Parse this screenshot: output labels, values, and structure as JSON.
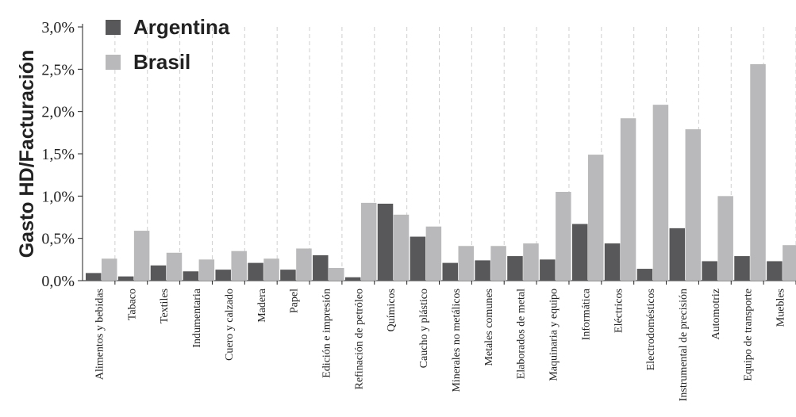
{
  "chart_data": {
    "type": "bar",
    "ylabel": "Gasto HD/Facturación",
    "xlabel": "",
    "ylim": [
      0,
      3.0
    ],
    "yticks": [
      "0,0%",
      "0,5%",
      "1,0%",
      "1,5%",
      "2,0%",
      "2,5%",
      "3,0%"
    ],
    "grid": "vertical-dashed",
    "legend_position": "top-left",
    "categories": [
      "Alimentos y bebidas",
      "Tabaco",
      "Textiles",
      "Indumentaria",
      "Cuero y calzado",
      "Madera",
      "Papel",
      "Edición e impresión",
      "Refinación de petróleo",
      "Químicos",
      "Caucho y plástico",
      "Minerales no metálicos",
      "Metales comunes",
      "Elaborados de metal",
      "Maquinaria y equipo",
      "Informática",
      "Eléctricos",
      "Electrodomésticos",
      "Instrumental  de precisión",
      "Automotriz",
      "Equipo de transporte",
      "Muebles"
    ],
    "series": [
      {
        "name": "Argentina",
        "color": "#58585a",
        "values": [
          0.09,
          0.05,
          0.18,
          0.11,
          0.13,
          0.21,
          0.13,
          0.3,
          0.04,
          0.91,
          0.52,
          0.21,
          0.24,
          0.29,
          0.25,
          0.67,
          0.44,
          0.14,
          0.62,
          0.23,
          0.29,
          0.23
        ]
      },
      {
        "name": "Brasil",
        "color": "#b9b9bb",
        "values": [
          0.26,
          0.59,
          0.33,
          0.25,
          0.35,
          0.26,
          0.38,
          0.15,
          0.92,
          0.78,
          0.64,
          0.41,
          0.41,
          0.44,
          1.05,
          1.49,
          1.92,
          2.08,
          1.79,
          1.0,
          2.56,
          0.42
        ]
      }
    ]
  }
}
